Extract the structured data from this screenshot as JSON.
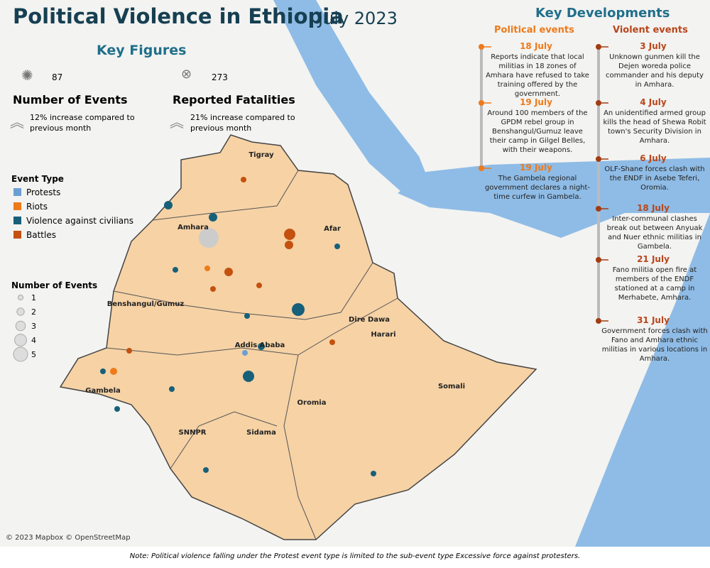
{
  "header": {
    "title": "Political Violence in Ethiopia",
    "date": "July 2023"
  },
  "key_figures": {
    "title": "Key Figures",
    "events": {
      "value": 87,
      "label": "Number of Events",
      "change": "12% increase compared to previous month"
    },
    "fatalities": {
      "value": 273,
      "label": "Reported Fatalities",
      "change": "21% increase compared to previous month"
    }
  },
  "legend": {
    "event_type_title": "Event Type",
    "event_types": [
      {
        "name": "Protests",
        "color": "#6a9fd4"
      },
      {
        "name": "Riots",
        "color": "#ee7a1a"
      },
      {
        "name": "Violence against civilians",
        "color": "#17607a"
      },
      {
        "name": "Battles",
        "color": "#c4510f"
      }
    ],
    "size_title": "Number of Events",
    "sizes": [
      1,
      2,
      3,
      4,
      5
    ]
  },
  "map_labels": [
    "Tigray",
    "Amhara",
    "Afar",
    "Benshangul/Gumuz",
    "Dire Dawa",
    "Harari",
    "Addis Ababa",
    "Gambela",
    "Oromia",
    "Somali",
    "SNNPR",
    "Sidama"
  ],
  "key_developments": {
    "title": "Key Developments",
    "political": {
      "title": "Political events",
      "events": [
        {
          "date": "18 July",
          "text": "Reports indicate that local militias in 18 zones of Amhara have refused to take training offered by the government."
        },
        {
          "date": "19 July",
          "text": "Around 100 members of the GPDM rebel group in Benshangul/Gumuz leave their camp in Gilgel Belles, with their weapons."
        },
        {
          "date": "19 July",
          "text": "The Gambela regional government declares a night-time curfew in Gambela."
        }
      ]
    },
    "violent": {
      "title": "Violent events",
      "events": [
        {
          "date": "3 July",
          "text": "Unknown gunmen kill the Dejen woreda police commander and his deputy in Amhara."
        },
        {
          "date": "4 July",
          "text": "An unidentified armed group kills the head of Shewa Robit town's Security Division in Amhara."
        },
        {
          "date": "6 July",
          "text": "OLF-Shane forces clash with the ENDF in Asebe Teferi, Oromia."
        },
        {
          "date": "18 July",
          "text": "Inter-communal clashes break out between Anyuak and Nuer ethnic militias in Gambela."
        },
        {
          "date": "21 July",
          "text": "Fano militia open fire at members of the ENDF stationed at a camp in Merhabete, Amhara."
        },
        {
          "date": "31 July",
          "text": "Government forces clash with Fano and Amhara ethnic militias in various locations in Amhara."
        }
      ]
    }
  },
  "attribution": "© 2023 Mapbox © OpenStreetMap",
  "note": "Note: Political violence falling under the Protest event type is limited to the sub-event type Excessive force against protesters."
}
